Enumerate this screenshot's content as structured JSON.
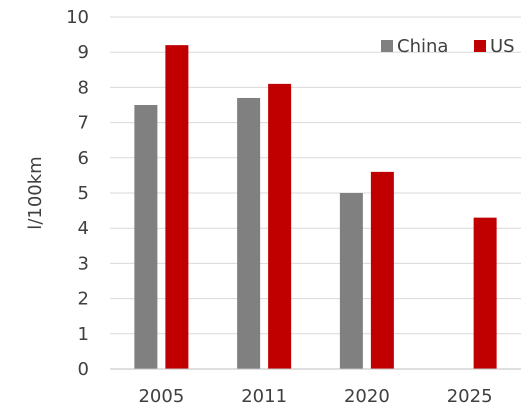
{
  "chart_data": {
    "type": "bar",
    "categories": [
      "2005",
      "2011",
      "2020",
      "2025"
    ],
    "series": [
      {
        "name": "China",
        "color": "#808080",
        "values": [
          7.5,
          7.7,
          5.0,
          null
        ]
      },
      {
        "name": "US",
        "color": "#c00000",
        "values": [
          9.2,
          8.1,
          5.6,
          4.3
        ]
      }
    ],
    "ylabel": "l/100km",
    "ylim": [
      0,
      10
    ],
    "yticks": [
      0,
      1,
      2,
      3,
      4,
      5,
      6,
      7,
      8,
      9,
      10
    ],
    "grid": true,
    "legend_position": "top-right"
  }
}
